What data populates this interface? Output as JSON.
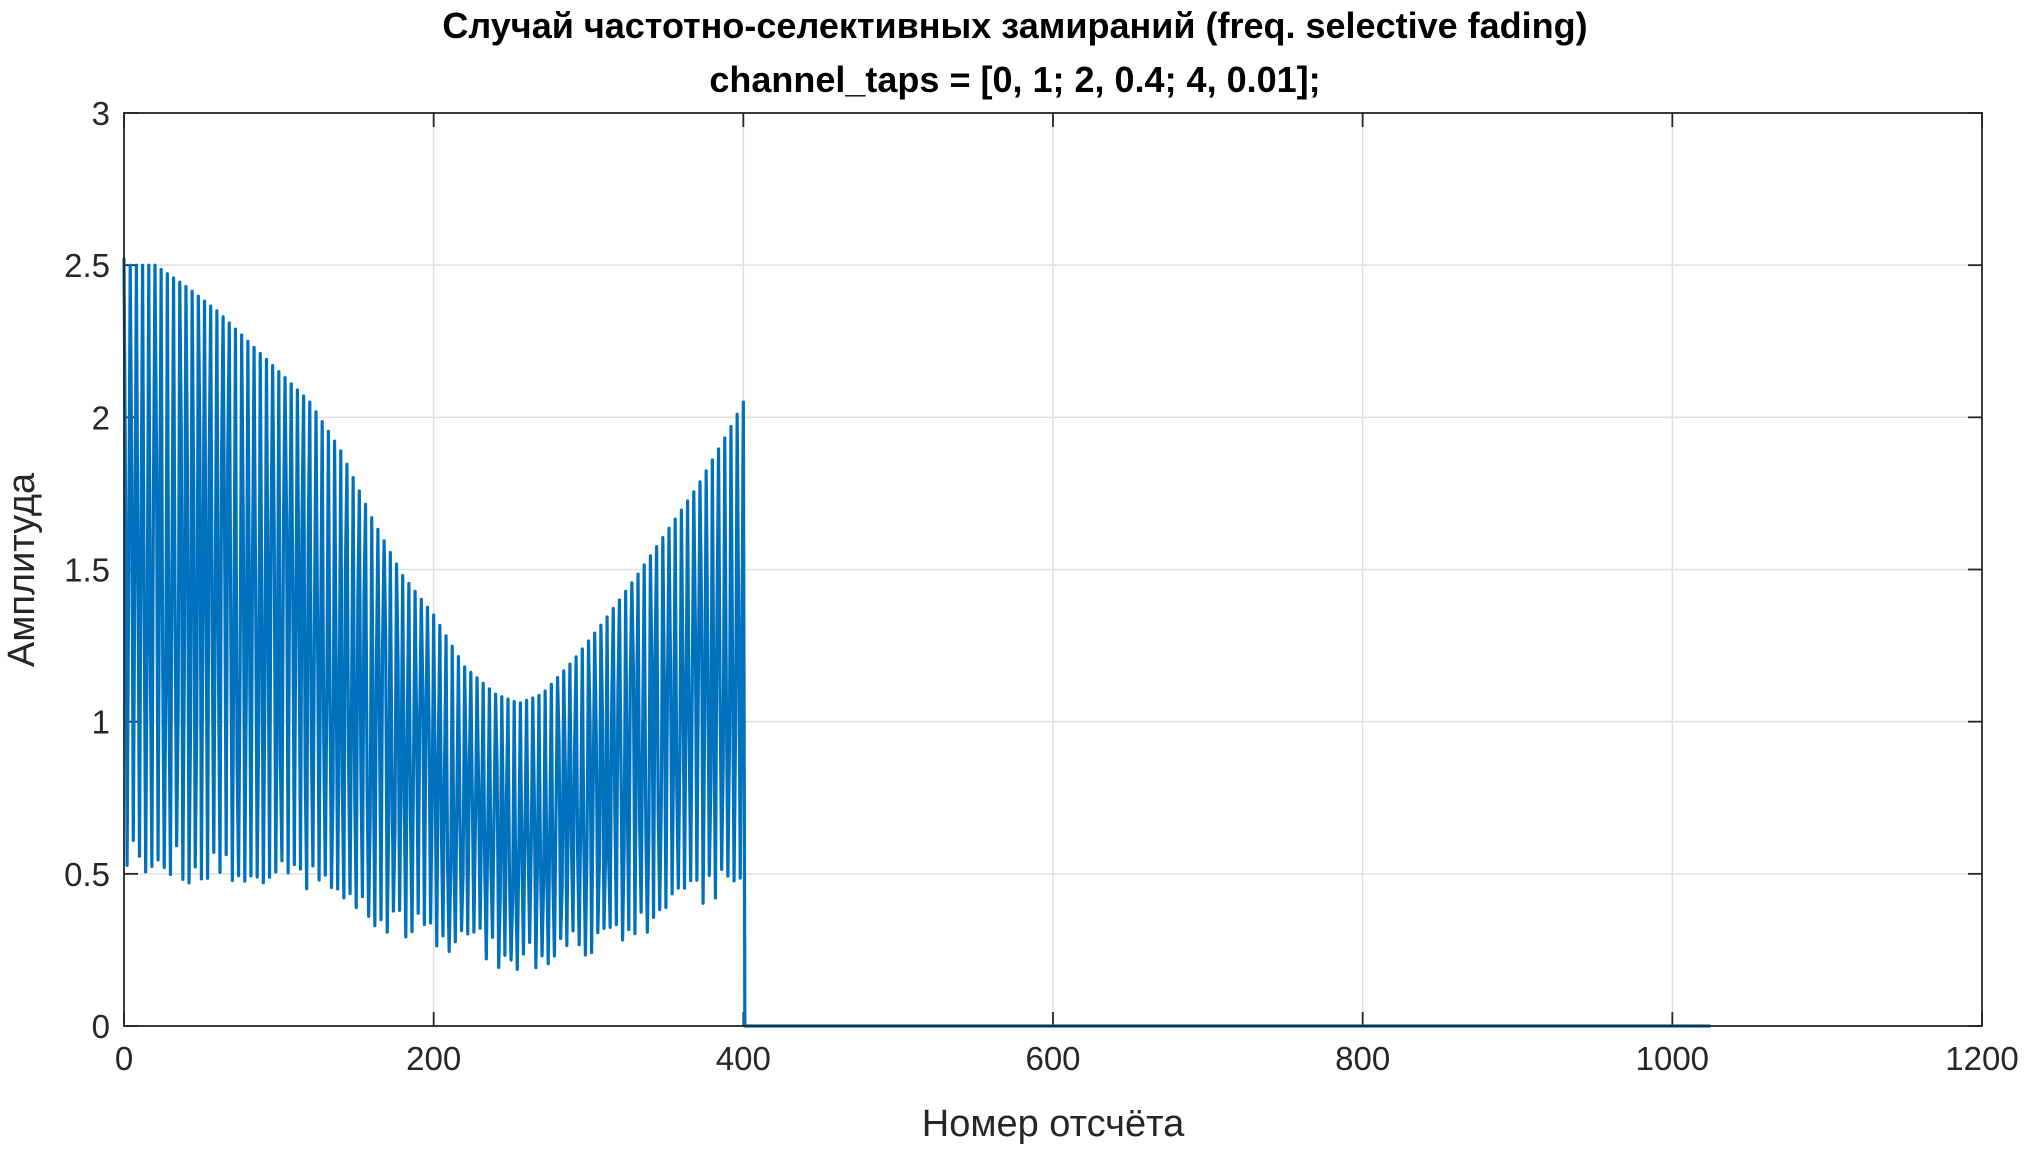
{
  "chart_data": {
    "type": "line",
    "title": "Случай частотно-селективных замираний (freq. selective fading)",
    "subtitle": "channel_taps = [0, 1; 2, 0.4; 4, 0.01];",
    "xlabel": "Номер отсчёта",
    "ylabel": "Амплитуда",
    "xlim": [
      0,
      1200
    ],
    "ylim": [
      0,
      3
    ],
    "xticks": [
      0,
      200,
      400,
      600,
      800,
      1000,
      1200
    ],
    "yticks": [
      0,
      0.5,
      1,
      1.5,
      2,
      2.5,
      3
    ],
    "xtick_labels": [
      "0",
      "200",
      "400",
      "600",
      "800",
      "1000",
      "1200"
    ],
    "ytick_labels": [
      "0",
      "0.5",
      "1",
      "1.5",
      "2",
      "2.5",
      "3"
    ],
    "grid": true,
    "series": [
      {
        "color": "#0072bd",
        "x_range": [
          0,
          1024
        ],
        "active_range": [
          0,
          400
        ],
        "sample_step": 1,
        "envelope_center": [
          [
            0,
            1.5
          ],
          [
            20,
            1.5
          ],
          [
            40,
            1.45
          ],
          [
            60,
            1.4
          ],
          [
            80,
            1.35
          ],
          [
            100,
            1.3
          ],
          [
            120,
            1.25
          ],
          [
            140,
            1.15
          ],
          [
            160,
            1.0
          ],
          [
            180,
            0.88
          ],
          [
            200,
            0.8
          ],
          [
            220,
            0.7
          ],
          [
            240,
            0.64
          ],
          [
            255,
            0.62
          ],
          [
            270,
            0.64
          ],
          [
            290,
            0.7
          ],
          [
            310,
            0.78
          ],
          [
            330,
            0.87
          ],
          [
            350,
            0.97
          ],
          [
            370,
            1.07
          ],
          [
            390,
            1.18
          ],
          [
            400,
            1.25
          ]
        ],
        "envelope_swing": [
          [
            0,
            1.0
          ],
          [
            20,
            1.0
          ],
          [
            40,
            0.98
          ],
          [
            60,
            0.95
          ],
          [
            80,
            0.9
          ],
          [
            100,
            0.85
          ],
          [
            120,
            0.8
          ],
          [
            140,
            0.74
          ],
          [
            160,
            0.67
          ],
          [
            180,
            0.6
          ],
          [
            200,
            0.55
          ],
          [
            220,
            0.48
          ],
          [
            240,
            0.45
          ],
          [
            255,
            0.44
          ],
          [
            270,
            0.45
          ],
          [
            290,
            0.5
          ],
          [
            310,
            0.55
          ],
          [
            330,
            0.6
          ],
          [
            350,
            0.65
          ],
          [
            370,
            0.7
          ],
          [
            390,
            0.77
          ],
          [
            400,
            0.8
          ]
        ],
        "tail_value": 0
      }
    ]
  }
}
